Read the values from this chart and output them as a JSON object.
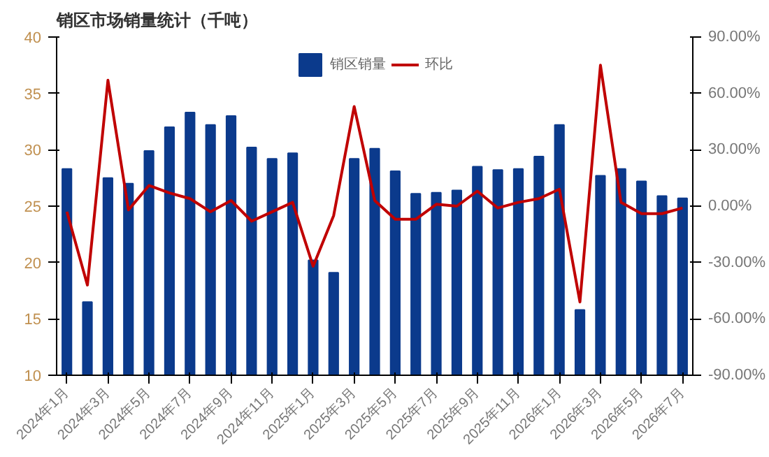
{
  "chart_data": {
    "type": "bar",
    "title": "销区市场销量统计（千吨）",
    "categories": [
      "2024年1月",
      null,
      "2024年3月",
      null,
      "2024年5月",
      null,
      "2024年7月",
      null,
      "2024年9月",
      null,
      "2024年11月",
      null,
      "2025年1月",
      null,
      "2025年3月",
      null,
      "2025年5月",
      null,
      "2025年7月",
      null,
      "2025年9月",
      null,
      "2025年11月",
      null,
      "2026年1月",
      null,
      "2026年3月",
      null,
      "2026年5月",
      null,
      "2026年7月"
    ],
    "series": [
      {
        "name": "销区销量",
        "color": "#0b3a8c",
        "values": [
          28.3,
          16.5,
          27.5,
          27,
          29.9,
          32,
          33.3,
          32.2,
          33,
          30.2,
          29.2,
          29.7,
          20.2,
          19.1,
          29.2,
          30.1,
          28.1,
          26.1,
          26.2,
          26.4,
          28.5,
          28.2,
          28.3,
          29.4,
          32.2,
          15.8,
          27.7,
          28.3,
          27.2,
          25.9,
          25.7
        ]
      },
      {
        "name": "环比",
        "type": "line",
        "axis": "y2",
        "color": "#c00000",
        "values": [
          -3,
          -42,
          67,
          -2,
          11,
          7,
          4,
          -3,
          3,
          -8,
          -3,
          2,
          -32,
          -5,
          53,
          3,
          -7,
          -7,
          1,
          0,
          8,
          -1,
          2,
          4,
          9,
          -51,
          75,
          2,
          -4,
          -4,
          -1
        ]
      }
    ],
    "ylim": [
      10,
      40
    ],
    "yticks": [
      10,
      15,
      20,
      25,
      30,
      35,
      40
    ],
    "y2lim": [
      -90,
      90
    ],
    "y2ticks": [
      {
        "value": -90,
        "label": "-90.00%"
      },
      {
        "value": -60,
        "label": "-60.00%"
      },
      {
        "value": -30,
        "label": "-30.00%"
      },
      {
        "value": 0,
        "label": "0.00%"
      },
      {
        "value": 30,
        "label": "30.00%"
      },
      {
        "value": 60,
        "label": "60.00%"
      },
      {
        "value": 90,
        "label": "90.00%"
      }
    ],
    "grid": false,
    "legend": "top"
  }
}
